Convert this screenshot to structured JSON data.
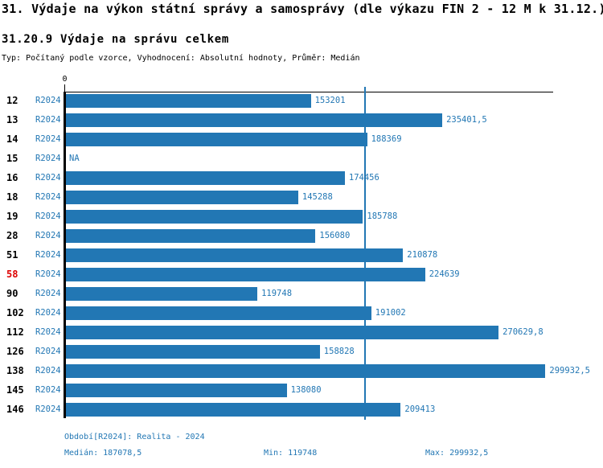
{
  "title": "31. Výdaje na výkon státní správy a samosprávy (dle výkazu FIN 2 - 12 M k 31.12.)",
  "subtitle": "31.20.9 Výdaje na správu celkem",
  "meta_line": "Typ: Počítaný podle vzorce, Vyhodnocení: Absolutní hodnoty, Průměr: Medián",
  "colors": {
    "bar_blue": "#2277b4",
    "label_blue": "#2277b4",
    "highlight_red": "#dd0000",
    "axis_black": "#000000",
    "background": "#ffffff"
  },
  "chart_data": {
    "type": "bar",
    "orientation": "horizontal",
    "series_label": "R2024",
    "axis_zero_label": "0",
    "categories": [
      "12",
      "13",
      "14",
      "15",
      "16",
      "18",
      "19",
      "28",
      "51",
      "58",
      "90",
      "102",
      "112",
      "126",
      "138",
      "145",
      "146"
    ],
    "values": [
      153201,
      235401.5,
      188369,
      null,
      174456,
      145288,
      185788,
      156080,
      210878,
      224639,
      119748,
      191002,
      270629.8,
      158828,
      299932.5,
      138080,
      209413
    ],
    "value_labels": [
      "153201",
      "235401,5",
      "188369",
      "NA",
      "174456",
      "145288",
      "185788",
      "156080",
      "210878",
      "224639",
      "119748",
      "191002",
      "270629,8",
      "158828",
      "299932,5",
      "138080",
      "209413"
    ],
    "highlighted_category": "58",
    "median_line_value": 187078.5,
    "xlim": [
      0,
      305000
    ],
    "grid": false,
    "legend_position": "none"
  },
  "footer": {
    "period": "Období[R2024]: Realita - 2024",
    "median": "Medián: 187078,5",
    "min": "Min: 119748",
    "max": "Max: 299932,5"
  }
}
